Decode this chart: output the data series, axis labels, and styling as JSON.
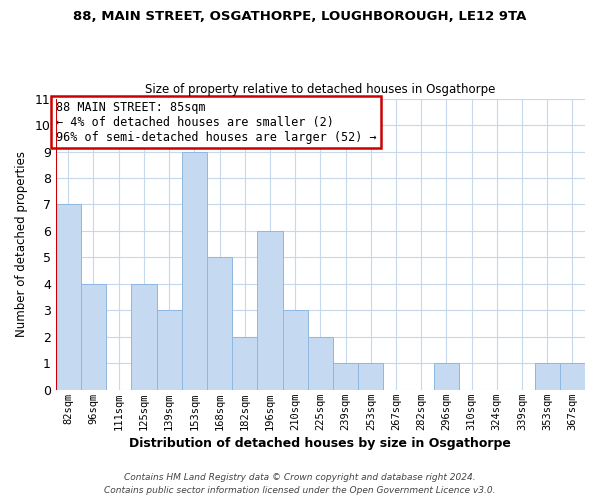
{
  "title_line1": "88, MAIN STREET, OSGATHORPE, LOUGHBOROUGH, LE12 9TA",
  "title_line2": "Size of property relative to detached houses in Osgathorpe",
  "xlabel": "Distribution of detached houses by size in Osgathorpe",
  "ylabel": "Number of detached properties",
  "bin_labels": [
    "82sqm",
    "96sqm",
    "111sqm",
    "125sqm",
    "139sqm",
    "153sqm",
    "168sqm",
    "182sqm",
    "196sqm",
    "210sqm",
    "225sqm",
    "239sqm",
    "253sqm",
    "267sqm",
    "282sqm",
    "296sqm",
    "310sqm",
    "324sqm",
    "339sqm",
    "353sqm",
    "367sqm"
  ],
  "bar_heights": [
    7,
    4,
    0,
    4,
    3,
    9,
    5,
    2,
    6,
    3,
    2,
    1,
    1,
    0,
    0,
    1,
    0,
    0,
    0,
    1,
    1
  ],
  "bar_color": "#c5d9f0",
  "bar_edge_color": "#8fb8e0",
  "ylim": [
    0,
    11
  ],
  "yticks": [
    0,
    1,
    2,
    3,
    4,
    5,
    6,
    7,
    8,
    9,
    10,
    11
  ],
  "annotation_title": "88 MAIN STREET: 85sqm",
  "annotation_line1": "← 4% of detached houses are smaller (2)",
  "annotation_line2": "96% of semi-detached houses are larger (52) →",
  "annotation_box_color": "#ffffff",
  "annotation_box_edge": "#cc0000",
  "highlight_line_color": "#cc0000",
  "footer_line1": "Contains HM Land Registry data © Crown copyright and database right 2024.",
  "footer_line2": "Contains public sector information licensed under the Open Government Licence v3.0.",
  "grid_color": "#c8d8ec",
  "background_color": "#ffffff"
}
